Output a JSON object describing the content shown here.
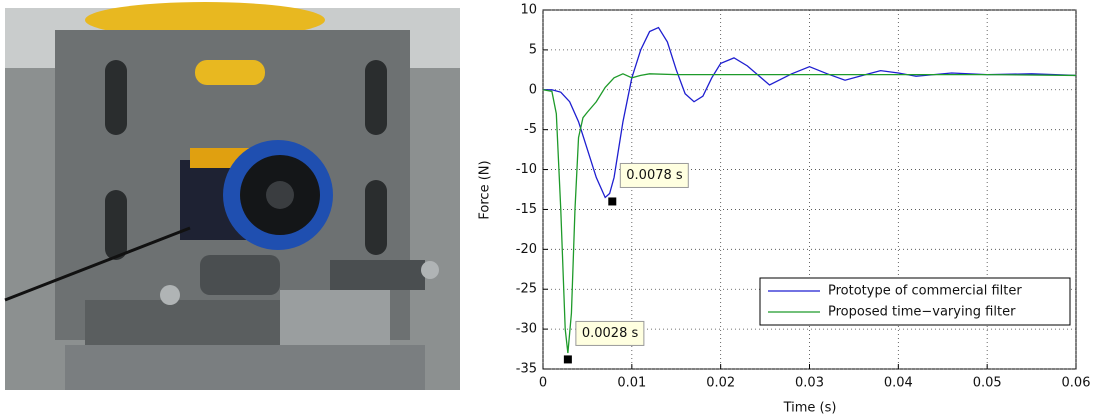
{
  "chart_data": {
    "type": "line",
    "xlabel": "Time (s)",
    "ylabel": "Force (N)",
    "xlim": [
      0,
      0.06
    ],
    "xticks": [
      0,
      0.01,
      0.02,
      0.03,
      0.04,
      0.05,
      0.06
    ],
    "ylim": [
      -35,
      10
    ],
    "yticks": [
      -35,
      -30,
      -25,
      -20,
      -15,
      -10,
      -5,
      0,
      5,
      10
    ],
    "grid": true,
    "legend": "lower right",
    "series": [
      {
        "name": "Prototype of commercial filter",
        "color": "#1f1fd0",
        "x": [
          0,
          0.001,
          0.002,
          0.003,
          0.004,
          0.005,
          0.006,
          0.007,
          0.0075,
          0.008,
          0.009,
          0.01,
          0.011,
          0.012,
          0.013,
          0.014,
          0.015,
          0.016,
          0.017,
          0.018,
          0.019,
          0.02,
          0.0215,
          0.023,
          0.0255,
          0.028,
          0.03,
          0.032,
          0.034,
          0.036,
          0.038,
          0.04,
          0.042,
          0.044,
          0.046,
          0.05,
          0.055,
          0.06
        ],
        "values": [
          0,
          0,
          -0.3,
          -1.5,
          -4,
          -7.5,
          -11,
          -13.5,
          -13,
          -11,
          -4,
          1.5,
          5,
          7.3,
          7.8,
          6,
          2.5,
          -0.5,
          -1.5,
          -0.8,
          1.5,
          3.3,
          4,
          3,
          0.6,
          2,
          2.9,
          2,
          1.2,
          1.8,
          2.4,
          2.1,
          1.7,
          1.9,
          2.1,
          1.9,
          2,
          1.8
        ]
      },
      {
        "name": "Proposed time−varying filter",
        "color": "#1e9a2a",
        "x": [
          0,
          0.001,
          0.0015,
          0.002,
          0.0025,
          0.0028,
          0.0032,
          0.0036,
          0.004,
          0.0045,
          0.005,
          0.006,
          0.007,
          0.008,
          0.009,
          0.01,
          0.011,
          0.012,
          0.015,
          0.02,
          0.03,
          0.04,
          0.05,
          0.06
        ],
        "values": [
          0,
          -0.2,
          -3,
          -15,
          -30,
          -33,
          -28,
          -15,
          -6,
          -3.5,
          -2.8,
          -1.5,
          0.3,
          1.5,
          2,
          1.5,
          1.8,
          2,
          1.9,
          1.9,
          1.9,
          1.9,
          1.9,
          1.8
        ]
      }
    ],
    "annotations": [
      {
        "text": "0.0078 s",
        "x": 0.0078,
        "y": -14
      },
      {
        "text": "0.0028 s",
        "x": 0.0028,
        "y": -33.8
      }
    ]
  }
}
